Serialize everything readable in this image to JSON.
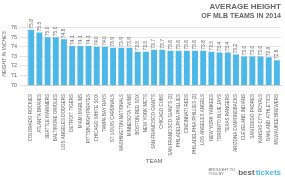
{
  "chart_data": {
    "type": "bar",
    "title": "AVERAGE HEIGHT",
    "subtitle": "OF MLB TEAMS IN 2014",
    "xlabel": "TEAM",
    "ylabel": "HEIGHT IN INCHES",
    "categories": [
      "COLORADO ROCKIES",
      "ATLANTA BRAVES",
      "SEATTLE MARINERS",
      "BALTIMORE ORIOLES",
      "LOS ANGELES DODGERS",
      "DETROIT TIGERS",
      "MIAMI MARLINS",
      "PITTSBURGH PIRATES",
      "CHICAGO WHITE SOX",
      "TAMPA BAY RAYS",
      "ST. LOUIS CARDINALS",
      "WASHINGTON NATIONALS",
      "MINNESOTA TWINS",
      "BOSTON RED SOX",
      "NEW YORK METS",
      "SAN FRANCISCO GIANTS",
      "CHICAGO CUBS",
      "SAN FRANCISCO GIANTS (2)",
      "PHILADELPHIA PHILLIES",
      "CINCINNATI REDS",
      "PHILADELPHIA PHILLIES (2)",
      "LOS ANGELES ANGELS",
      "NEW YORK YANKEES",
      "TORONTO BLUE JAYS",
      "TEXAS RANGERS",
      "ARIZONA DIAMONDBACKS",
      "CLEVELAND INDIANS",
      "SAN DIEGO PADRES",
      "KANSAS CITY ROYALS",
      "OAKLAND ATHLETICS",
      "MILWAUKEE BREWERS"
    ],
    "values": [
      75.8,
      75.5,
      75.0,
      75.0,
      74.8,
      74.1,
      74.1,
      74.1,
      74.0,
      74.0,
      73.9,
      73.9,
      73.9,
      73.5,
      73.5,
      73.7,
      73.7,
      73.6,
      73.6,
      73.6,
      73.6,
      73.6,
      73.5,
      73.4,
      73.4,
      73.2,
      73.0,
      73.0,
      73.0,
      72.9,
      72.6
    ],
    "value_labels": [
      "75.8",
      "75.5",
      "75.0",
      "75.0",
      "74.8",
      "74.1",
      "74.1",
      "74.1",
      "74.0",
      "74.0",
      "73.9",
      "73.9",
      "73.9",
      "73.5",
      "73.5",
      "73.7",
      "73.7",
      "73.6",
      "73.6",
      "73.6",
      "73.6",
      "73.6",
      "73.5",
      "73.4",
      "73.4",
      "73.2",
      "73.0",
      "73.0",
      "73.0",
      "72.9",
      "72.6"
    ],
    "color": "#4db8e8",
    "ylim": [
      70,
      76.5
    ],
    "yticks": [
      70,
      71,
      72,
      73,
      74,
      75,
      76
    ],
    "grid": true,
    "data_labels": true,
    "annotations": [
      "BROUGHT TO\nYOU BY",
      "best",
      "tickets"
    ]
  }
}
